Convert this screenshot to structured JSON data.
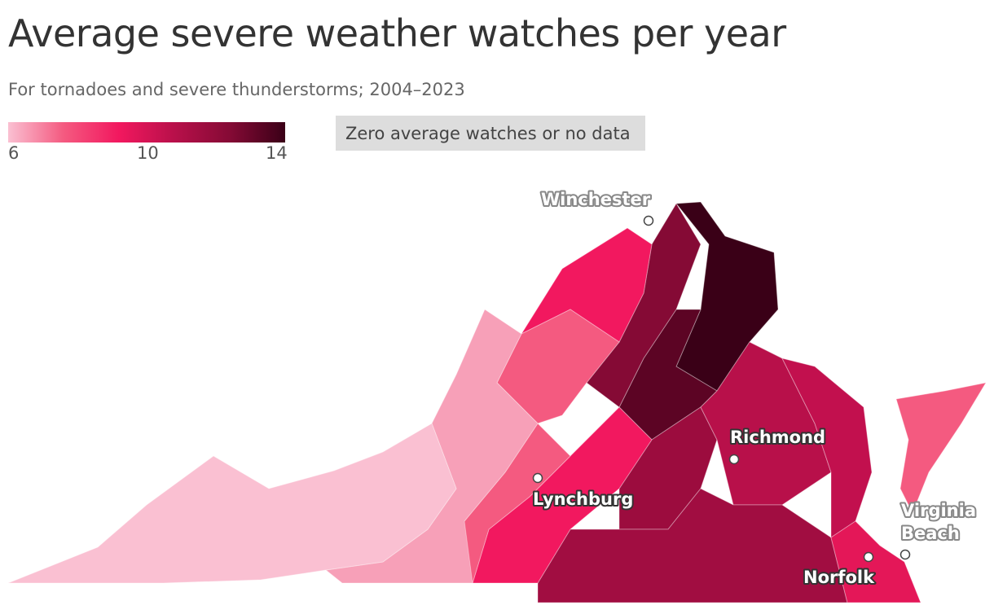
{
  "title": "Average severe weather watches per year",
  "subtitle": "For tornadoes and severe thunderstorms; 2004–2023",
  "legend": {
    "ticks": [
      "6",
      "10",
      "14"
    ],
    "tick_values": [
      6,
      10,
      14
    ],
    "colors": [
      "#fac0d2",
      "#f45a80",
      "#f2185f",
      "#b8104a",
      "#850a35",
      "#3a0017"
    ],
    "zero_label": "Zero average watches or no data",
    "zero_color": "#dddddd"
  },
  "map": {
    "region": "Virginia",
    "cities": [
      {
        "name": "Winchester"
      },
      {
        "name": "Richmond"
      },
      {
        "name": "Lynchburg"
      },
      {
        "name": "Norfolk"
      },
      {
        "name": "Virginia Beach",
        "lines": [
          "Virginia",
          "Beach"
        ]
      }
    ],
    "regions": [
      {
        "name": "northern-virginia",
        "color": "#3a0017"
      },
      {
        "name": "fredericksburg-area",
        "color": "#5c0424"
      },
      {
        "name": "north-piedmont",
        "color": "#850a35"
      },
      {
        "name": "central-virginia",
        "color": "#9c0c3e"
      },
      {
        "name": "richmond-area",
        "color": "#b8104a"
      },
      {
        "name": "southside",
        "color": "#a10d41"
      },
      {
        "name": "tidewater",
        "color": "#c2104e"
      },
      {
        "name": "hampton-roads",
        "color": "#e41758"
      },
      {
        "name": "lynchburg-area",
        "color": "#f2185f"
      },
      {
        "name": "shenandoah-north",
        "color": "#f2185f"
      },
      {
        "name": "shenandoah-middle",
        "color": "#f45a80"
      },
      {
        "name": "roanoke-area",
        "color": "#f45a80"
      },
      {
        "name": "highlands",
        "color": "#f7a0b8"
      },
      {
        "name": "southwest",
        "color": "#fac0d2"
      },
      {
        "name": "eastern-shore",
        "color": "#f45a80"
      }
    ]
  }
}
